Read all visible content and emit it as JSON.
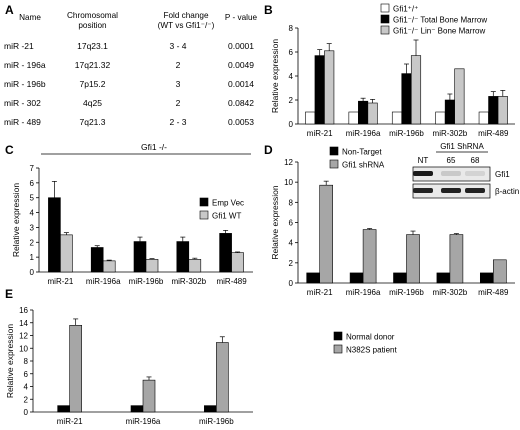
{
  "panels": {
    "A": "A",
    "B": "B",
    "C": "C",
    "D": "D",
    "E": "E"
  },
  "table": {
    "headers": {
      "name": "Name",
      "position_l1": "Chromosomal",
      "position_l2": "position",
      "fold_l1": "Fold    change",
      "fold_l2": "(WT vs Gfi1⁻/⁻)",
      "pvalue": "P - value"
    },
    "rows": [
      {
        "name": "miR -21",
        "position": "17q23.1",
        "fold": "3 - 4",
        "p": "0.0001"
      },
      {
        "name": "miR - 196a",
        "position": "17q21.32",
        "fold": "2",
        "p": "0.0049"
      },
      {
        "name": "miR - 196b",
        "position": "7p15.2",
        "fold": "3",
        "p": "0.0014"
      },
      {
        "name": "miR - 302",
        "position": "4q25",
        "fold": "2",
        "p": "0.0842"
      },
      {
        "name": "miR - 489",
        "position": "7q21.3",
        "fold": "2 - 3",
        "p": "0.0053"
      }
    ]
  },
  "blot": {
    "title": "Gfi1 ShRNA",
    "lanes": [
      "NT",
      "65",
      "68"
    ],
    "bands": [
      "Gfi1",
      "β-actin"
    ]
  },
  "colors": {
    "black": "#000000",
    "gray": "#a6a6a6",
    "lightgray": "#c8c8c8",
    "white": "#ffffff"
  },
  "chart_data": [
    {
      "panel": "B",
      "type": "bar",
      "ylabel": "Relative expression",
      "ylim": [
        0,
        8
      ],
      "yticks": [
        0,
        2,
        4,
        6,
        8
      ],
      "categories": [
        "miR-21",
        "miR-196a",
        "miR-196b",
        "miR-302b",
        "miR-489"
      ],
      "legend_position": "top-right",
      "series": [
        {
          "name": "Gfi1⁺/⁺",
          "color": "#ffffff",
          "values": [
            1,
            1,
            1,
            1,
            1
          ],
          "errors": [
            0,
            0,
            0,
            0,
            0
          ]
        },
        {
          "name": "Gfi1⁻/⁻ Total Bone Marrow",
          "color": "#000000",
          "values": [
            5.7,
            1.9,
            4.2,
            2.0,
            2.3
          ],
          "errors": [
            0.5,
            0.25,
            0.8,
            0.5,
            0.4
          ]
        },
        {
          "name": "Gfi1⁻/⁻ Lin⁻ Bone Marrow",
          "color": "#c8c8c8",
          "values": [
            6.1,
            1.75,
            5.7,
            4.6,
            2.3
          ],
          "errors": [
            0.6,
            0.3,
            1.3,
            0,
            0.5
          ]
        }
      ]
    },
    {
      "panel": "C",
      "type": "bar",
      "annotation": "Gfi1  -/-",
      "ylabel": "Relative expression",
      "ylim": [
        0,
        7
      ],
      "yticks": [
        0,
        1,
        2,
        3,
        4,
        5,
        6,
        7
      ],
      "categories": [
        "miR-21",
        "miR-196a",
        "miR-196b",
        "miR-302b",
        "miR-489"
      ],
      "legend_position": "top-right",
      "series": [
        {
          "name": "Emp Vec",
          "color": "#000000",
          "values": [
            5.0,
            1.65,
            2.05,
            2.05,
            2.6
          ],
          "errors": [
            1.1,
            0.12,
            0.3,
            0.3,
            0.2
          ]
        },
        {
          "name": "Gfi1 WT",
          "color": "#c8c8c8",
          "values": [
            2.5,
            0.75,
            0.85,
            0.85,
            1.3
          ],
          "errors": [
            0.15,
            0.05,
            0.05,
            0.08,
            0.05
          ]
        }
      ]
    },
    {
      "panel": "D",
      "type": "bar",
      "ylabel": "Relative expression",
      "ylim": [
        0,
        12
      ],
      "yticks": [
        0,
        2,
        4,
        6,
        8,
        10,
        12
      ],
      "categories": [
        "miR-21",
        "miR-196a",
        "miR-196b",
        "miR-302b",
        "miR-489"
      ],
      "legend_position": "top-left",
      "series": [
        {
          "name": "Non-Target",
          "color": "#000000",
          "values": [
            1,
            1,
            1,
            1,
            1
          ],
          "errors": [
            0,
            0,
            0,
            0,
            0
          ]
        },
        {
          "name": "Gfi1 shRNA",
          "color": "#a6a6a6",
          "values": [
            9.7,
            5.3,
            4.8,
            4.8,
            2.3
          ],
          "errors": [
            0.4,
            0.1,
            0.35,
            0.1,
            0
          ]
        }
      ]
    },
    {
      "panel": "E",
      "type": "bar",
      "ylabel": "Relative expression",
      "ylim": [
        0,
        16
      ],
      "yticks": [
        0,
        2,
        4,
        6,
        8,
        10,
        12,
        14,
        16
      ],
      "categories": [
        "miR-21",
        "miR-196a",
        "miR-196b"
      ],
      "legend_position": "top-right",
      "series": [
        {
          "name": "Normal donor",
          "color": "#000000",
          "values": [
            1,
            1,
            1
          ],
          "errors": [
            0,
            0,
            0
          ]
        },
        {
          "name": "N382S patient",
          "color": "#a6a6a6",
          "values": [
            13.6,
            5.0,
            10.9
          ],
          "errors": [
            1.0,
            0.5,
            0.9
          ]
        }
      ]
    }
  ]
}
